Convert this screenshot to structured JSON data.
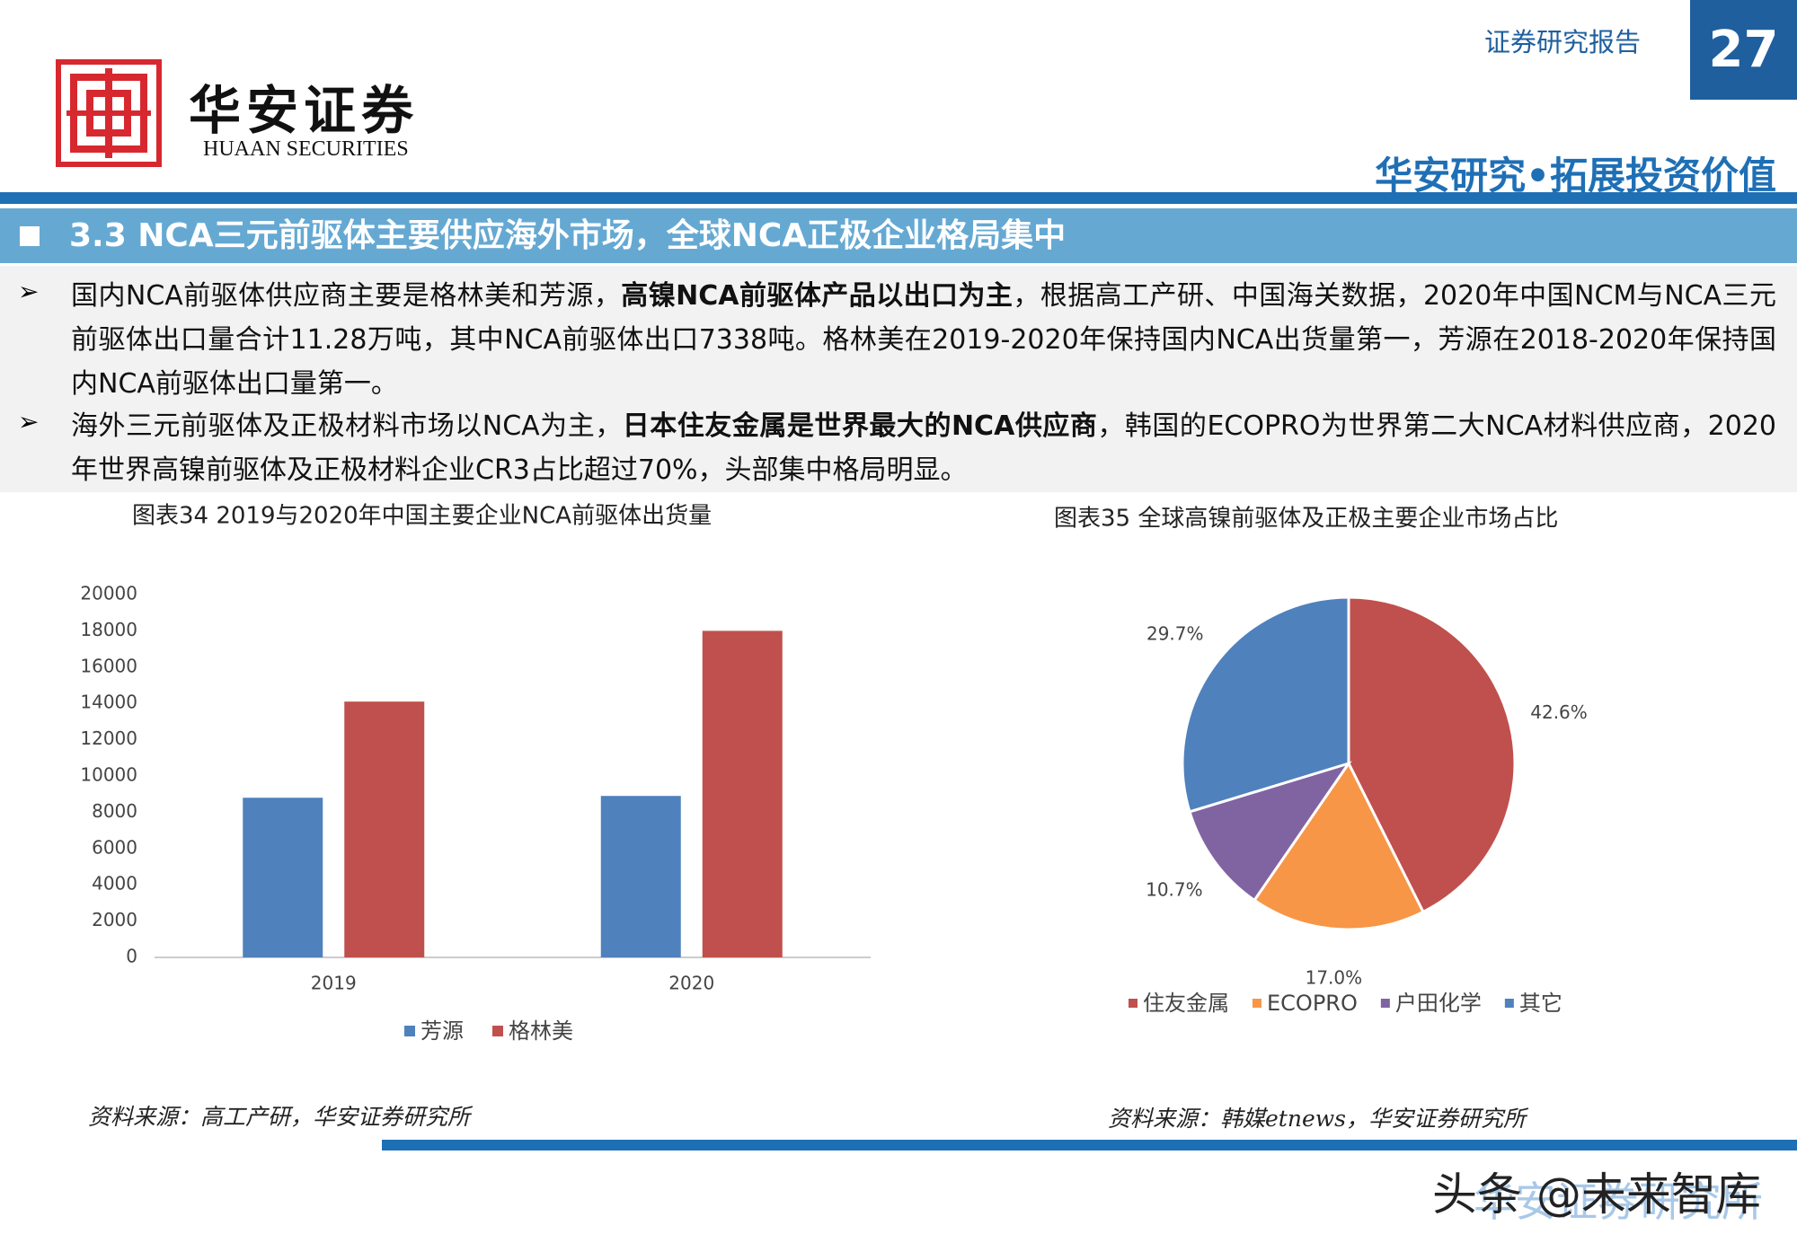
{
  "header": {
    "report_type": "证券研究报告",
    "page_number": "27",
    "company_cn": "华安证券",
    "company_en": "HUAAN SECURITIES",
    "slogan": "华安研究•拓展投资价值"
  },
  "section_title": "3.3 NCA三元前驱体主要供应海外市场，全球NCA正极企业格局集中",
  "bullets": [
    [
      "国内NCA前驱体供应商主要是格林美和芳源，",
      "高镍NCA前驱体产品以出口为主",
      "，根据高工产研、中国海关数据，2020年中国NCM与NCA三元前驱体出口量合计11.28万吨，其中NCA前驱体出口7338吨。格林美在2019-2020年保持国内NCA出货量第一，芳源在2018-2020年保持国内NCA前驱体出口量第一。"
    ],
    [
      "海外三元前驱体及正极材料市场以NCA为主，",
      "日本住友金属是世界最大的NCA供应商",
      "，韩国的ECOPRO为世界第二大NCA材料供应商，2020年世界高镍前驱体及正极材料企业CR3占比超过70%，头部集中格局明显。"
    ]
  ],
  "chart_data": [
    {
      "type": "bar",
      "title": "图表34  2019与2020年中国主要企业NCA前驱体出货量",
      "categories": [
        "2019",
        "2020"
      ],
      "series": [
        {
          "name": "芳源",
          "color": "#4f81bd",
          "values": [
            8800,
            8900
          ]
        },
        {
          "name": "格林美",
          "color": "#c0504d",
          "values": [
            14100,
            18000
          ]
        }
      ],
      "ylim": [
        0,
        20000
      ],
      "yticks": [
        0,
        2000,
        4000,
        6000,
        8000,
        10000,
        12000,
        14000,
        16000,
        18000,
        20000
      ],
      "grid": false,
      "source": "资料来源：高工产研，华安证券研究所"
    },
    {
      "type": "pie",
      "title": "图表35  全球高镍前驱体及正极主要企业市场占比",
      "categories": [
        "住友金属",
        "ECOPRO",
        "户田化学",
        "其它"
      ],
      "values": [
        42.6,
        17.0,
        10.7,
        29.7
      ],
      "value_labels": [
        "42.6%",
        "17.0%",
        "10.7%",
        "29.7%"
      ],
      "colors": [
        "#c0504d",
        "#f79646",
        "#8064a2",
        "#4f81bd"
      ],
      "source": "资料来源：韩媒etnews，华安证券研究所"
    }
  ],
  "watermark": "头条 @未来智库",
  "watermark_under": "华安证券研究所"
}
